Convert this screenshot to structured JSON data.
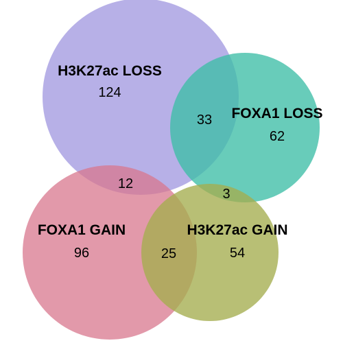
{
  "sets": [
    {
      "id": "h3k27ac_loss",
      "label": "H3K27ac LOSS",
      "only_count": "124",
      "color": "#9b92de"
    },
    {
      "id": "foxa1_loss",
      "label": "FOXA1 LOSS",
      "only_count": "62",
      "color": "#3ebea7"
    },
    {
      "id": "foxa1_gain",
      "label": "FOXA1 GAIN",
      "only_count": "96",
      "color": "#d8778d"
    },
    {
      "id": "h3k27ac_gain",
      "label": "H3K27ac GAIN",
      "only_count": "54",
      "color": "#a4ad4e"
    }
  ],
  "overlaps": {
    "h3k27ac_loss_foxa1_loss": "33",
    "h3k27ac_loss_foxa1_gain": "12",
    "foxa1_loss_h3k27ac_gain": "3",
    "foxa1_gain_h3k27ac_gain": "25"
  }
}
